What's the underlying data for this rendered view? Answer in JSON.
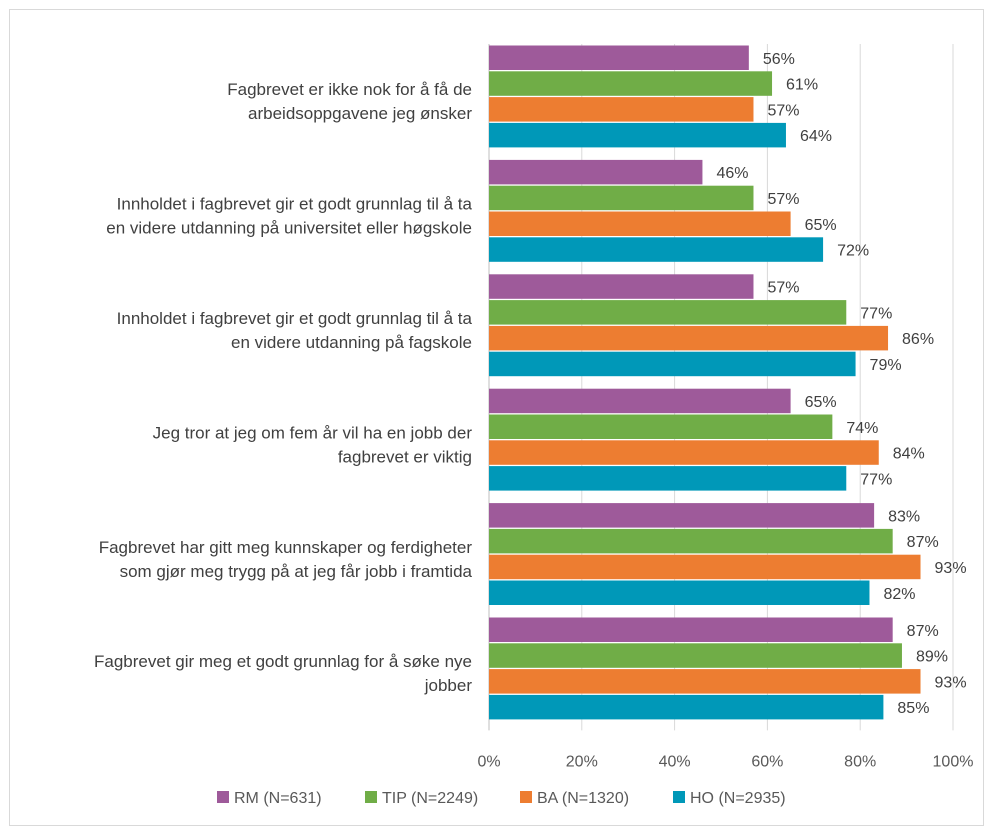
{
  "chart_data": {
    "type": "bar",
    "orientation": "horizontal",
    "categories": [
      [
        "Fagbrevet er ikke nok for å få de",
        "arbeidsoppgavene jeg ønsker"
      ],
      [
        "Innholdet i fagbrevet gir et godt grunnlag til å ta",
        "en videre utdanning på universitet eller høgskole"
      ],
      [
        "Innholdet i fagbrevet gir et godt grunnlag til å ta",
        "en videre utdanning på fagskole"
      ],
      [
        "Jeg tror at jeg om fem år vil ha en jobb der",
        "fagbrevet er viktig"
      ],
      [
        "Fagbrevet har gitt meg kunnskaper og ferdigheter",
        "som gjør meg trygg på at jeg får jobb i framtida"
      ],
      [
        "Fagbrevet gir meg et godt grunnlag for å søke nye",
        "jobber"
      ]
    ],
    "series": [
      {
        "name": "RM (N=631)",
        "color": "#9e5a9a",
        "values": [
          56,
          46,
          57,
          65,
          83,
          87
        ]
      },
      {
        "name": "TIP (N=2249)",
        "color": "#70ad47",
        "values": [
          61,
          57,
          77,
          74,
          87,
          89
        ]
      },
      {
        "name": "BA (N=1320)",
        "color": "#ed7d31",
        "values": [
          57,
          65,
          86,
          84,
          93,
          93
        ]
      },
      {
        "name": "HO (N=2935)",
        "color": "#0098b8",
        "values": [
          64,
          72,
          79,
          77,
          82,
          85
        ]
      }
    ],
    "xlim": [
      0,
      100
    ],
    "xticks": [
      0,
      20,
      40,
      60,
      80,
      100
    ],
    "tick_suffix": "%",
    "value_suffix": "%",
    "grid": true,
    "legend_position": "bottom"
  }
}
